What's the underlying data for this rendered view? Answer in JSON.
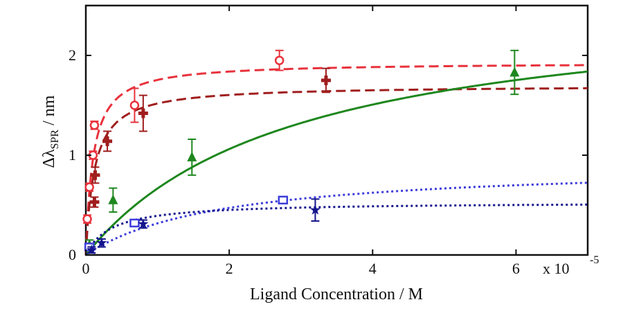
{
  "chart_data": {
    "type": "scatter",
    "title": "",
    "xlabel": "Ligand Concentration / M",
    "ylabel": "Δλ",
    "ylabel_sub": "SPR",
    "ylabel_unit": " / nm",
    "x_scale_label": "x 10",
    "x_scale_exp": "-5",
    "xlim": [
      0,
      7
    ],
    "ylim": [
      0,
      2.5
    ],
    "x_ticks": [
      0,
      2,
      4,
      6
    ],
    "y_ticks": [
      0,
      1,
      2
    ],
    "grid": false,
    "legend": "none",
    "series": [
      {
        "name": "red-circles",
        "color": "#e8323c",
        "marker": "circle",
        "line_style": "dashed",
        "points": [
          {
            "x": 0.02,
            "y": 0.36,
            "err": 0.04
          },
          {
            "x": 0.05,
            "y": 0.68,
            "err": 0.04
          },
          {
            "x": 0.1,
            "y": 1.0,
            "err": 0.04
          },
          {
            "x": 0.12,
            "y": 1.3,
            "err": 0.04
          },
          {
            "x": 0.68,
            "y": 1.5,
            "err": 0.17
          },
          {
            "x": 2.7,
            "y": 1.95,
            "err": 0.1
          }
        ],
        "fit": {
          "model": "langmuir",
          "bmax": 1.93,
          "kd": 0.1
        }
      },
      {
        "name": "darkred-crosses",
        "color": "#a01e1e",
        "marker": "cross",
        "line_style": "dashed",
        "points": [
          {
            "x": 0.12,
            "y": 0.53,
            "err": 0.05
          },
          {
            "x": 0.13,
            "y": 0.8,
            "err": 0.08
          },
          {
            "x": 0.3,
            "y": 1.14,
            "err": 0.1
          },
          {
            "x": 0.8,
            "y": 1.42,
            "err": 0.18
          },
          {
            "x": 3.35,
            "y": 1.75,
            "err": 0.12
          }
        ],
        "fit": {
          "model": "langmuir",
          "bmax": 1.7,
          "kd": 0.12
        }
      },
      {
        "name": "green-triangles",
        "color": "#1e871e",
        "marker": "triangle",
        "line_style": "solid",
        "points": [
          {
            "x": 0.05,
            "y": 0.1,
            "err": 0.05
          },
          {
            "x": 0.38,
            "y": 0.55,
            "err": 0.12
          },
          {
            "x": 1.48,
            "y": 0.98,
            "err": 0.18
          },
          {
            "x": 5.98,
            "y": 1.83,
            "err": 0.22
          }
        ],
        "fit": {
          "model": "langmuir",
          "bmax": 2.6,
          "kd": 2.9
        }
      },
      {
        "name": "blue-squares",
        "color": "#3c3cdc",
        "marker": "square",
        "line_style": "dotted",
        "points": [
          {
            "x": 0.05,
            "y": 0.08,
            "err": 0.03
          },
          {
            "x": 0.68,
            "y": 0.32,
            "err": 0.02
          },
          {
            "x": 2.75,
            "y": 0.55,
            "err": 0.03
          }
        ],
        "fit": {
          "model": "langmuir",
          "bmax": 0.92,
          "kd": 1.9
        }
      },
      {
        "name": "navy-stars",
        "color": "#14148c",
        "marker": "star",
        "line_style": "dotted",
        "points": [
          {
            "x": 0.08,
            "y": 0.05,
            "err": 0.03
          },
          {
            "x": 0.22,
            "y": 0.12,
            "err": 0.04
          },
          {
            "x": 0.8,
            "y": 0.31,
            "err": 0.04
          },
          {
            "x": 3.2,
            "y": 0.45,
            "err": 0.11
          }
        ],
        "fit": {
          "model": "langmuir",
          "bmax": 0.53,
          "kd": 0.35
        }
      }
    ]
  }
}
